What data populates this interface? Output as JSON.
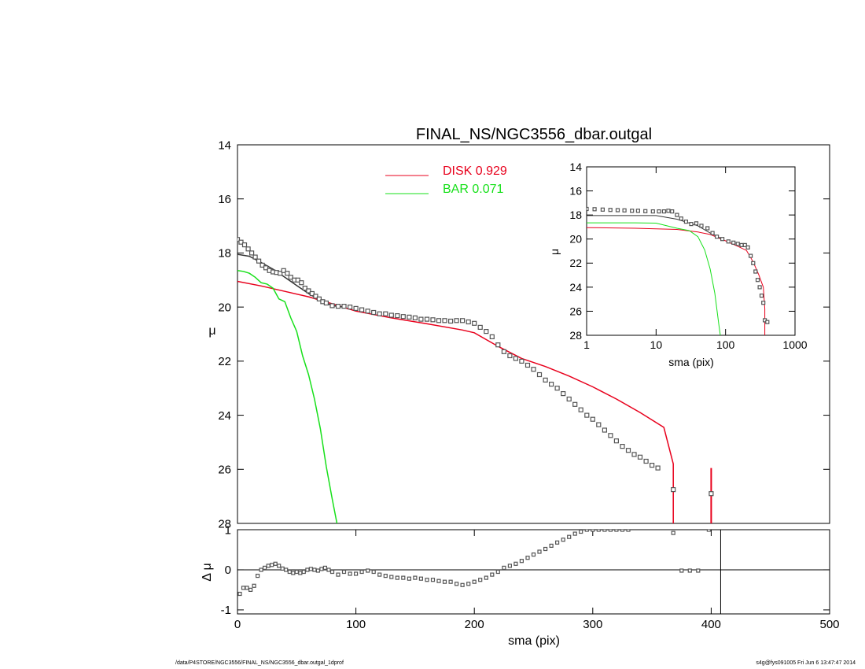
{
  "title": "FINAL_NS/NGC3556_dbar.outgal",
  "colors": {
    "disk": "#e8001c",
    "bar": "#17e01a",
    "data": "#555555",
    "axis": "#000000",
    "model": "#333333"
  },
  "footer": {
    "left": "/data/P4STORE/NGC3556/FINAL_NS/NGC3556_dbar.outgal_1dprof",
    "right": "s4g@fys091005  Fri Jun  6 13:47:47 2014"
  },
  "legend": [
    {
      "label": "DISK  0.929",
      "color": "#e8001c"
    },
    {
      "label": "BAR  0.071",
      "color": "#17e01a"
    }
  ],
  "chart_data": [
    {
      "id": "main",
      "type": "scatter",
      "title": "FINAL_NS/NGC3556_dbar.outgal",
      "xlabel": "",
      "ylabel": "μ",
      "xlim": [
        0,
        500
      ],
      "ylim": [
        28,
        14
      ],
      "yticks": [
        {
          "v": 14,
          "label": "14"
        },
        {
          "v": 16,
          "label": "16"
        },
        {
          "v": 18,
          "label": "18"
        },
        {
          "v": 20,
          "label": "20"
        },
        {
          "v": 22,
          "label": "22"
        },
        {
          "v": 24,
          "label": "24"
        },
        {
          "v": 26,
          "label": "26"
        },
        {
          "v": 28,
          "label": "28"
        }
      ],
      "series": [
        {
          "name": "DISK  0.929",
          "kind": "line",
          "color": "#e8001c",
          "x": [
            0,
            20,
            40,
            60,
            80,
            100,
            130,
            160,
            190,
            200,
            220,
            240,
            260,
            280,
            300,
            320,
            340,
            360,
            368,
            368
          ],
          "y": [
            19.05,
            19.22,
            19.42,
            19.62,
            19.88,
            20.15,
            20.4,
            20.62,
            20.85,
            20.95,
            21.45,
            21.9,
            22.2,
            22.55,
            22.95,
            23.4,
            23.9,
            24.45,
            25.8,
            28
          ]
        },
        {
          "name": "BAR  0.071",
          "kind": "line",
          "color": "#17e01a",
          "x": [
            0,
            5,
            10,
            15,
            20,
            25,
            30,
            35,
            40,
            45,
            50,
            55,
            60,
            65,
            70,
            75,
            80,
            84
          ],
          "y": [
            18.65,
            18.68,
            18.75,
            18.9,
            19.1,
            19.15,
            19.3,
            19.7,
            19.8,
            20.4,
            20.9,
            21.8,
            22.5,
            23.4,
            24.5,
            25.9,
            27.1,
            28
          ]
        },
        {
          "kind": "line",
          "color": "#333333",
          "x": [
            0,
            10,
            20,
            30,
            40,
            50,
            60,
            70,
            80,
            90
          ],
          "y": [
            18.05,
            18.12,
            18.35,
            18.6,
            18.9,
            19.2,
            19.5,
            19.75,
            19.95,
            20.0
          ]
        },
        {
          "kind": "points",
          "color": "#555555",
          "x": [
            0,
            3,
            6,
            9,
            12,
            15,
            18,
            21,
            24,
            27,
            30,
            33,
            36,
            39,
            42,
            45,
            48,
            51,
            54,
            57,
            60,
            63,
            66,
            69,
            72,
            75,
            80,
            85,
            90,
            95,
            100,
            105,
            110,
            115,
            120,
            125,
            130,
            135,
            140,
            145,
            150,
            155,
            160,
            165,
            170,
            175,
            180,
            185,
            190,
            195,
            200,
            205,
            210,
            215,
            220,
            225,
            230,
            235,
            240,
            245,
            250,
            255,
            260,
            265,
            270,
            275,
            280,
            285,
            290,
            295,
            300,
            305,
            310,
            315,
            320,
            325,
            330,
            335,
            340,
            345,
            350,
            355,
            368
          ],
          "y": [
            17.5,
            17.6,
            17.7,
            17.85,
            18.0,
            18.15,
            18.3,
            18.45,
            18.55,
            18.65,
            18.7,
            18.72,
            18.75,
            18.65,
            18.75,
            18.9,
            19.0,
            19.0,
            19.1,
            19.3,
            19.4,
            19.5,
            19.6,
            19.7,
            19.8,
            19.85,
            19.95,
            19.97,
            19.97,
            20.0,
            20.05,
            20.1,
            20.15,
            20.2,
            20.25,
            20.25,
            20.3,
            20.32,
            20.35,
            20.37,
            20.4,
            20.45,
            20.45,
            20.47,
            20.5,
            20.5,
            20.52,
            20.5,
            20.5,
            20.55,
            20.6,
            20.75,
            20.9,
            21.1,
            21.4,
            21.65,
            21.8,
            21.9,
            22.0,
            22.15,
            22.3,
            22.5,
            22.7,
            22.85,
            23.0,
            23.2,
            23.4,
            23.6,
            23.8,
            24.0,
            24.15,
            24.35,
            24.55,
            24.75,
            24.95,
            25.15,
            25.3,
            25.45,
            25.55,
            25.7,
            25.85,
            25.95,
            26.75
          ]
        },
        {
          "kind": "errorbar",
          "color": "#e8001c",
          "x": [
            400
          ],
          "y": [
            26.9
          ],
          "ylo": [
            28
          ],
          "yhi": [
            25.95
          ]
        }
      ]
    },
    {
      "id": "residual",
      "type": "scatter",
      "xlabel": "sma (pix)",
      "ylabel": "Δ μ",
      "xlim": [
        0,
        500
      ],
      "ylim": [
        -1.1,
        1.0
      ],
      "xticks": [
        {
          "v": 0,
          "label": "0"
        },
        {
          "v": 100,
          "label": "100"
        },
        {
          "v": 200,
          "label": "200"
        },
        {
          "v": 300,
          "label": "300"
        },
        {
          "v": 400,
          "label": "400"
        },
        {
          "v": 500,
          "label": "500"
        }
      ],
      "yticks": [
        {
          "v": 1,
          "label": "1"
        },
        {
          "v": 0,
          "label": "0"
        },
        {
          "v": -1,
          "label": "-1"
        }
      ],
      "zero_line": true,
      "vline_x": 408,
      "series": [
        {
          "kind": "points",
          "color": "#555555",
          "x": [
            2,
            5,
            8,
            11,
            14,
            17,
            20,
            23,
            26,
            29,
            32,
            35,
            38,
            41,
            44,
            47,
            50,
            53,
            56,
            59,
            62,
            65,
            68,
            71,
            74,
            77,
            80,
            85,
            90,
            95,
            100,
            105,
            110,
            115,
            120,
            125,
            130,
            135,
            140,
            145,
            150,
            155,
            160,
            165,
            170,
            175,
            180,
            185,
            190,
            195,
            200,
            205,
            210,
            215,
            220,
            225,
            230,
            235,
            240,
            245,
            250,
            255,
            260,
            265,
            270,
            275,
            280,
            285,
            290,
            295,
            300,
            305,
            310,
            315,
            320,
            325,
            330,
            368,
            375,
            382,
            389,
            398
          ],
          "y": [
            -0.6,
            -0.45,
            -0.45,
            -0.5,
            -0.4,
            -0.15,
            0.0,
            0.05,
            0.1,
            0.12,
            0.15,
            0.1,
            0.03,
            0.0,
            -0.05,
            -0.08,
            -0.05,
            -0.08,
            -0.05,
            0.0,
            0.02,
            0.0,
            -0.02,
            0.02,
            0.05,
            0.0,
            -0.05,
            -0.12,
            -0.05,
            -0.1,
            -0.1,
            -0.05,
            -0.02,
            -0.05,
            -0.12,
            -0.15,
            -0.18,
            -0.2,
            -0.2,
            -0.22,
            -0.2,
            -0.22,
            -0.25,
            -0.25,
            -0.28,
            -0.3,
            -0.3,
            -0.35,
            -0.38,
            -0.35,
            -0.3,
            -0.25,
            -0.2,
            -0.12,
            -0.05,
            0.05,
            0.1,
            0.15,
            0.22,
            0.3,
            0.38,
            0.45,
            0.52,
            0.6,
            0.68,
            0.75,
            0.82,
            0.9,
            0.95,
            1.0,
            1.0,
            1.0,
            1.0,
            1.0,
            1.0,
            1.0,
            1.0,
            0.92,
            -0.02,
            -0.02,
            -0.02,
            1.0
          ]
        }
      ]
    },
    {
      "id": "inset",
      "type": "scatter",
      "xlabel": "sma (pix)",
      "ylabel": "μ",
      "xscale": "log",
      "xlim": [
        1,
        1000
      ],
      "ylim": [
        28,
        14
      ],
      "xticks": [
        {
          "v": 1,
          "label": "1"
        },
        {
          "v": 10,
          "label": "10"
        },
        {
          "v": 100,
          "label": "100"
        },
        {
          "v": 1000,
          "label": "1000"
        }
      ],
      "yticks": [
        {
          "v": 14,
          "label": "14"
        },
        {
          "v": 16,
          "label": "16"
        },
        {
          "v": 18,
          "label": "18"
        },
        {
          "v": 20,
          "label": "20"
        },
        {
          "v": 22,
          "label": "22"
        },
        {
          "v": 24,
          "label": "24"
        },
        {
          "v": 26,
          "label": "26"
        },
        {
          "v": 28,
          "label": "28"
        }
      ],
      "series": [
        {
          "kind": "line",
          "color": "#e8001c",
          "x": [
            1,
            5,
            10,
            20,
            40,
            60,
            100,
            150,
            200,
            250,
            300,
            350,
            368,
            368
          ],
          "y": [
            19.05,
            19.1,
            19.15,
            19.2,
            19.42,
            19.62,
            20.15,
            20.6,
            20.95,
            21.9,
            22.95,
            24.0,
            25.8,
            28
          ]
        },
        {
          "kind": "line",
          "color": "#17e01a",
          "x": [
            1,
            5,
            10,
            20,
            30,
            40,
            50,
            60,
            70,
            80,
            84
          ],
          "y": [
            18.65,
            18.65,
            18.68,
            19.1,
            19.3,
            19.8,
            20.9,
            22.5,
            24.5,
            27.1,
            28
          ]
        },
        {
          "kind": "line",
          "color": "#333333",
          "x": [
            1,
            5,
            10,
            20,
            40,
            60,
            90
          ],
          "y": [
            18.05,
            18.05,
            18.05,
            18.35,
            18.9,
            19.5,
            20.0
          ]
        },
        {
          "kind": "points",
          "color": "#555555",
          "x": [
            1,
            1.3,
            1.7,
            2.2,
            2.8,
            3.5,
            4.5,
            5.5,
            7,
            9,
            11,
            13,
            15,
            17,
            20,
            23,
            27,
            32,
            38,
            45,
            55,
            65,
            75,
            90,
            110,
            130,
            150,
            170,
            190,
            210,
            230,
            250,
            270,
            290,
            310,
            330,
            350,
            368,
            400
          ],
          "y": [
            17.5,
            17.52,
            17.55,
            17.58,
            17.6,
            17.62,
            17.65,
            17.65,
            17.68,
            17.7,
            17.7,
            17.7,
            17.65,
            17.7,
            18.0,
            18.3,
            18.55,
            18.75,
            18.7,
            18.9,
            19.1,
            19.5,
            19.8,
            20.0,
            20.2,
            20.3,
            20.4,
            20.5,
            20.5,
            20.7,
            21.4,
            22.0,
            22.7,
            23.4,
            24.0,
            24.7,
            25.3,
            26.75,
            26.9
          ]
        }
      ]
    }
  ]
}
